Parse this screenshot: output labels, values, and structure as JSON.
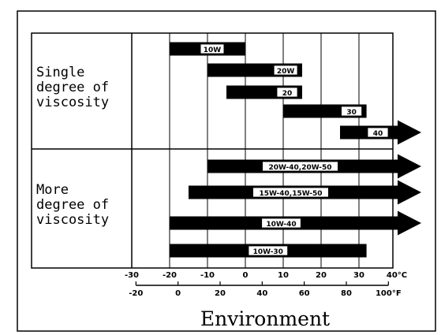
{
  "chart_data": {
    "type": "bar",
    "xlabel": "Environment",
    "x_unit_c": "40°C",
    "x_unit_f": "100°F",
    "celsius_ticks": [
      "-30",
      "-20",
      "-10",
      "0",
      "10",
      "20",
      "30"
    ],
    "celsius_tick_values": [
      -30,
      -20,
      -10,
      0,
      10,
      20,
      30,
      40
    ],
    "fahrenheit_ticks": [
      "-20",
      "0",
      "20",
      "40",
      "60",
      "80"
    ],
    "fahrenheit_tick_values": [
      -20,
      0,
      20,
      40,
      60,
      80,
      100
    ],
    "xlim_c": [
      -30,
      40
    ],
    "groups": [
      {
        "label_lines": [
          "Single",
          "degree of",
          "viscosity"
        ],
        "series": [
          {
            "name": "10W",
            "start": -20,
            "end": 0,
            "arrow": false
          },
          {
            "name": "20W",
            "start": -10,
            "end": 15,
            "arrow": false
          },
          {
            "name": "20",
            "start": -5,
            "end": 15,
            "arrow": false
          },
          {
            "name": "30",
            "start": 10,
            "end": 32,
            "arrow": false
          },
          {
            "name": "40",
            "start": 25,
            "end": 45,
            "arrow": true
          }
        ]
      },
      {
        "label_lines": [
          "More",
          "degree of",
          "viscosity"
        ],
        "series": [
          {
            "name": "20W-40,20W-50",
            "start": -10,
            "end": 45,
            "arrow": true
          },
          {
            "name": "15W-40,15W-50",
            "start": -15,
            "end": 45,
            "arrow": true
          },
          {
            "name": "10W-40",
            "start": -20,
            "end": 45,
            "arrow": true
          },
          {
            "name": "10W-30",
            "start": -20,
            "end": 32,
            "arrow": false
          }
        ]
      }
    ],
    "colors": {
      "bar": "#000000",
      "label_box": "#ffffff",
      "frame": "#000000",
      "background": "#ffffff"
    }
  }
}
